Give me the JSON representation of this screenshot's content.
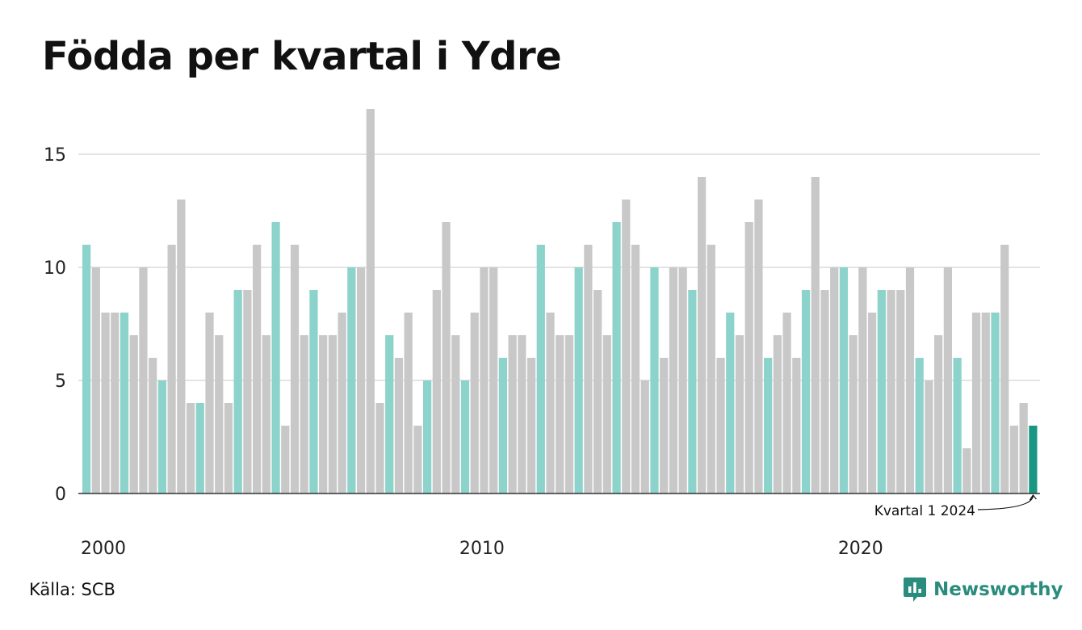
{
  "title": "Födda per kvartal i Ydre",
  "source": "Källa: SCB",
  "brand": "Newsworthy",
  "colors": {
    "q1": "#8cd3cb",
    "other": "#c8c8c8",
    "latest": "#1a9683",
    "grid": "#dcdcdc",
    "axis": "#333333"
  },
  "chart_data": {
    "type": "bar",
    "start_year": 2000,
    "start_quarter": 1,
    "values": [
      11,
      10,
      8,
      8,
      8,
      7,
      10,
      6,
      5,
      11,
      13,
      4,
      4,
      8,
      7,
      4,
      9,
      9,
      11,
      7,
      12,
      3,
      11,
      7,
      9,
      7,
      7,
      8,
      10,
      10,
      17,
      4,
      7,
      6,
      8,
      3,
      5,
      9,
      12,
      7,
      5,
      8,
      10,
      10,
      6,
      7,
      7,
      6,
      11,
      8,
      7,
      7,
      10,
      11,
      9,
      7,
      12,
      13,
      11,
      5,
      10,
      6,
      10,
      10,
      9,
      14,
      11,
      6,
      8,
      7,
      12,
      13,
      6,
      7,
      8,
      6,
      9,
      14,
      9,
      10,
      10,
      7,
      10,
      8,
      9,
      9,
      9,
      10,
      6,
      5,
      7,
      10,
      6,
      2,
      8,
      8,
      8,
      11,
      3,
      4,
      3
    ],
    "y_ticks": [
      0,
      5,
      10,
      15
    ],
    "ylim": [
      0,
      17
    ],
    "x_ticks": [
      "2000",
      "2010",
      "2020"
    ],
    "annotation": "Kvartal 1 2024",
    "grid": true
  }
}
